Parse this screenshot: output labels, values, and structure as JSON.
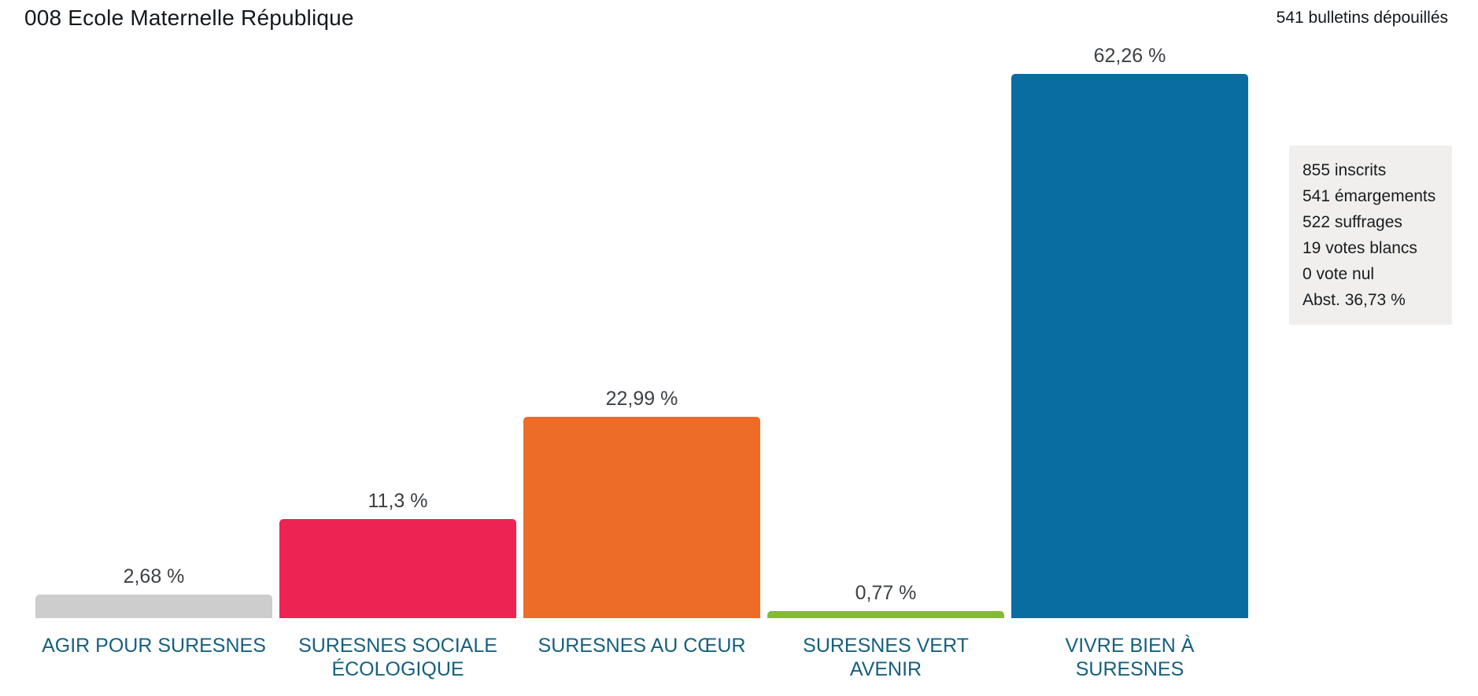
{
  "header": {
    "title": "008 Ecole Maternelle République",
    "ballots_counted": "541 bulletins dépouillés"
  },
  "chart_data": {
    "type": "bar",
    "title": "008 Ecole Maternelle République",
    "categories": [
      "AGIR POUR SURESNES",
      "SURESNES SOCIALE ÉCOLOGIQUE",
      "SURESNES AU CŒUR",
      "SURESNES VERT AVENIR",
      "VIVRE BIEN À SURESNES"
    ],
    "values": [
      2.68,
      11.3,
      22.99,
      0.77,
      62.26
    ],
    "value_labels": [
      "2,68 %",
      "11,3 %",
      "22,99 %",
      "0,77 %",
      "62,26 %"
    ],
    "bar_colors": [
      "#cdcdcd",
      "#ed2453",
      "#ec6c28",
      "#85bb33",
      "#0a6da1"
    ],
    "unit": "%",
    "ylim": [
      0,
      66
    ],
    "grid": false,
    "axes_visible": false,
    "value_label_position": "above-bar",
    "category_label_position": "below-bar"
  },
  "stats_box": {
    "lines": [
      "855 inscrits",
      "541 émargements",
      "522 suffrages",
      "19 votes blancs",
      "0 vote nul",
      "Abst. 36,73 %"
    ]
  },
  "colors": {
    "page_background": "#ffffff",
    "title_text": "#14181c",
    "value_label_text": "#3d4043",
    "category_label_text": "#15607f",
    "stats_box_background": "#f0efed"
  }
}
